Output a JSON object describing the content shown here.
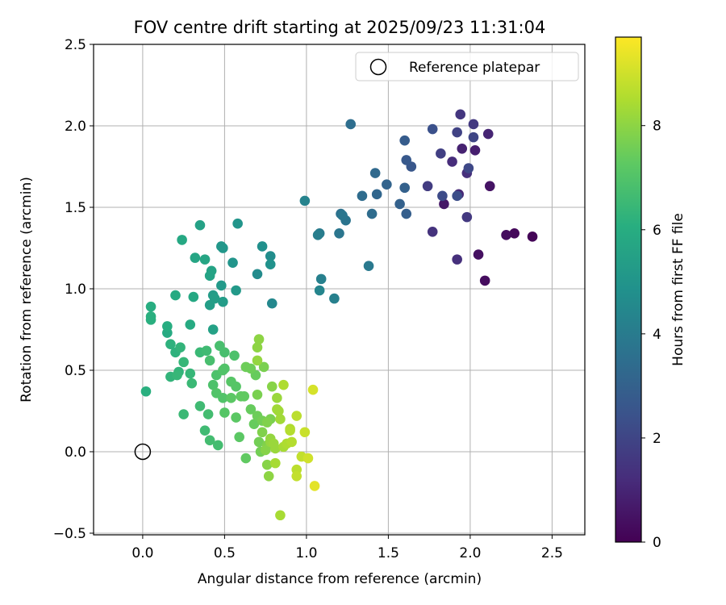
{
  "chart_data": {
    "type": "scatter",
    "title": "FOV centre drift starting at 2025/09/23 11:31:04",
    "xlabel": "Angular distance from reference (arcmin)",
    "ylabel": "Rotation from reference (arcmin)",
    "xlim": [
      -0.3,
      2.7
    ],
    "ylim": [
      -0.51,
      2.5
    ],
    "xticks": [
      0.0,
      0.5,
      1.0,
      1.5,
      2.0,
      2.5
    ],
    "xtick_labels": [
      "0.0",
      "0.5",
      "1.0",
      "1.5",
      "2.0",
      "2.5"
    ],
    "yticks": [
      -0.5,
      0.0,
      0.5,
      1.0,
      1.5,
      2.0,
      2.5
    ],
    "ytick_labels": [
      "−0.5",
      "0.0",
      "0.5",
      "1.0",
      "1.5",
      "2.0",
      "2.5"
    ],
    "grid": true,
    "legend": {
      "position": "top-right",
      "label": "Reference platepar"
    },
    "reference_point": {
      "x": 0.0,
      "y": 0.0
    },
    "colorbar": {
      "label": "Hours from first FF file",
      "colormap": "viridis",
      "range": [
        0,
        9.7
      ],
      "ticks": [
        0,
        2,
        4,
        6,
        8
      ],
      "tick_labels": [
        "0",
        "2",
        "4",
        "6",
        "8"
      ]
    },
    "series": [
      {
        "name": "FOV centre",
        "points": [
          {
            "x": 2.38,
            "y": 1.32,
            "h": 0.1
          },
          {
            "x": 2.27,
            "y": 1.34,
            "h": 0.2
          },
          {
            "x": 2.22,
            "y": 1.33,
            "h": 0.3
          },
          {
            "x": 2.09,
            "y": 1.05,
            "h": 0.3
          },
          {
            "x": 2.05,
            "y": 1.21,
            "h": 0.4
          },
          {
            "x": 2.12,
            "y": 1.63,
            "h": 0.5
          },
          {
            "x": 1.84,
            "y": 1.52,
            "h": 0.6
          },
          {
            "x": 2.03,
            "y": 1.85,
            "h": 0.8
          },
          {
            "x": 1.95,
            "y": 1.86,
            "h": 0.9
          },
          {
            "x": 2.11,
            "y": 1.95,
            "h": 1.0
          },
          {
            "x": 1.93,
            "y": 1.58,
            "h": 1.1
          },
          {
            "x": 1.89,
            "y": 1.78,
            "h": 1.2
          },
          {
            "x": 1.98,
            "y": 1.71,
            "h": 1.3
          },
          {
            "x": 1.92,
            "y": 1.18,
            "h": 1.3
          },
          {
            "x": 1.77,
            "y": 1.35,
            "h": 1.4
          },
          {
            "x": 1.94,
            "y": 2.07,
            "h": 1.5
          },
          {
            "x": 2.02,
            "y": 2.01,
            "h": 1.6
          },
          {
            "x": 1.98,
            "y": 1.44,
            "h": 1.6
          },
          {
            "x": 1.74,
            "y": 1.63,
            "h": 1.7
          },
          {
            "x": 1.82,
            "y": 1.83,
            "h": 1.8
          },
          {
            "x": 1.92,
            "y": 1.96,
            "h": 1.9
          },
          {
            "x": 2.02,
            "y": 1.93,
            "h": 2.0
          },
          {
            "x": 1.99,
            "y": 1.74,
            "h": 2.1
          },
          {
            "x": 1.83,
            "y": 1.57,
            "h": 2.2
          },
          {
            "x": 1.92,
            "y": 1.57,
            "h": 2.3
          },
          {
            "x": 1.77,
            "y": 1.98,
            "h": 2.4
          },
          {
            "x": 1.64,
            "y": 1.75,
            "h": 2.6
          },
          {
            "x": 1.61,
            "y": 1.79,
            "h": 2.7
          },
          {
            "x": 1.6,
            "y": 1.91,
            "h": 2.8
          },
          {
            "x": 1.61,
            "y": 1.46,
            "h": 2.9
          },
          {
            "x": 1.57,
            "y": 1.52,
            "h": 3.0
          },
          {
            "x": 1.6,
            "y": 1.62,
            "h": 3.0
          },
          {
            "x": 1.49,
            "y": 1.64,
            "h": 3.1
          },
          {
            "x": 1.43,
            "y": 1.58,
            "h": 3.2
          },
          {
            "x": 1.42,
            "y": 1.71,
            "h": 3.3
          },
          {
            "x": 1.34,
            "y": 1.57,
            "h": 3.4
          },
          {
            "x": 1.4,
            "y": 1.46,
            "h": 3.4
          },
          {
            "x": 1.27,
            "y": 2.01,
            "h": 3.5
          },
          {
            "x": 1.21,
            "y": 1.46,
            "h": 3.6
          },
          {
            "x": 1.24,
            "y": 1.42,
            "h": 3.7
          },
          {
            "x": 1.22,
            "y": 1.45,
            "h": 3.8
          },
          {
            "x": 1.2,
            "y": 1.34,
            "h": 3.8
          },
          {
            "x": 1.38,
            "y": 1.14,
            "h": 3.9
          },
          {
            "x": 1.08,
            "y": 1.34,
            "h": 4.0
          },
          {
            "x": 1.07,
            "y": 1.33,
            "h": 4.1
          },
          {
            "x": 1.09,
            "y": 1.06,
            "h": 4.2
          },
          {
            "x": 1.17,
            "y": 0.94,
            "h": 4.2
          },
          {
            "x": 0.99,
            "y": 1.54,
            "h": 4.3
          },
          {
            "x": 1.08,
            "y": 0.99,
            "h": 4.4
          },
          {
            "x": 0.79,
            "y": 0.91,
            "h": 4.5
          },
          {
            "x": 0.7,
            "y": 1.09,
            "h": 4.6
          },
          {
            "x": 0.78,
            "y": 1.2,
            "h": 4.7
          },
          {
            "x": 0.73,
            "y": 1.26,
            "h": 4.8
          },
          {
            "x": 0.78,
            "y": 1.15,
            "h": 4.9
          },
          {
            "x": 0.58,
            "y": 1.4,
            "h": 5.0
          },
          {
            "x": 0.55,
            "y": 1.16,
            "h": 5.0
          },
          {
            "x": 0.49,
            "y": 1.25,
            "h": 5.1
          },
          {
            "x": 0.48,
            "y": 1.26,
            "h": 5.1
          },
          {
            "x": 0.57,
            "y": 0.99,
            "h": 5.2
          },
          {
            "x": 0.48,
            "y": 1.02,
            "h": 5.2
          },
          {
            "x": 0.49,
            "y": 0.92,
            "h": 5.3
          },
          {
            "x": 0.43,
            "y": 0.96,
            "h": 5.3
          },
          {
            "x": 0.44,
            "y": 0.94,
            "h": 5.4
          },
          {
            "x": 0.41,
            "y": 0.9,
            "h": 5.4
          },
          {
            "x": 0.43,
            "y": 0.75,
            "h": 5.5
          },
          {
            "x": 0.35,
            "y": 1.39,
            "h": 5.5
          },
          {
            "x": 0.42,
            "y": 1.11,
            "h": 5.6
          },
          {
            "x": 0.41,
            "y": 1.08,
            "h": 5.6
          },
          {
            "x": 0.38,
            "y": 1.18,
            "h": 5.7
          },
          {
            "x": 0.32,
            "y": 1.19,
            "h": 5.7
          },
          {
            "x": 0.31,
            "y": 0.95,
            "h": 5.8
          },
          {
            "x": 0.24,
            "y": 1.3,
            "h": 5.8
          },
          {
            "x": 0.2,
            "y": 0.96,
            "h": 5.9
          },
          {
            "x": 0.29,
            "y": 0.78,
            "h": 5.9
          },
          {
            "x": 0.15,
            "y": 0.73,
            "h": 5.9
          },
          {
            "x": 0.15,
            "y": 0.77,
            "h": 6.0
          },
          {
            "x": 0.05,
            "y": 0.89,
            "h": 6.0
          },
          {
            "x": 0.05,
            "y": 0.83,
            "h": 6.1
          },
          {
            "x": 0.05,
            "y": 0.81,
            "h": 6.1
          },
          {
            "x": 0.02,
            "y": 0.37,
            "h": 6.1
          },
          {
            "x": 0.17,
            "y": 0.66,
            "h": 6.2
          },
          {
            "x": 0.2,
            "y": 0.61,
            "h": 6.2
          },
          {
            "x": 0.23,
            "y": 0.64,
            "h": 6.3
          },
          {
            "x": 0.17,
            "y": 0.46,
            "h": 6.3
          },
          {
            "x": 0.22,
            "y": 0.49,
            "h": 6.3
          },
          {
            "x": 0.25,
            "y": 0.55,
            "h": 6.4
          },
          {
            "x": 0.29,
            "y": 0.48,
            "h": 6.4
          },
          {
            "x": 0.21,
            "y": 0.47,
            "h": 6.4
          },
          {
            "x": 0.25,
            "y": 0.23,
            "h": 6.5
          },
          {
            "x": 0.3,
            "y": 0.42,
            "h": 6.5
          },
          {
            "x": 0.35,
            "y": 0.61,
            "h": 6.5
          },
          {
            "x": 0.39,
            "y": 0.62,
            "h": 6.6
          },
          {
            "x": 0.38,
            "y": 0.13,
            "h": 6.6
          },
          {
            "x": 0.35,
            "y": 0.28,
            "h": 6.6
          },
          {
            "x": 0.4,
            "y": 0.23,
            "h": 6.7
          },
          {
            "x": 0.41,
            "y": 0.07,
            "h": 6.7
          },
          {
            "x": 0.46,
            "y": 0.04,
            "h": 6.7
          },
          {
            "x": 0.41,
            "y": 0.56,
            "h": 6.8
          },
          {
            "x": 0.47,
            "y": 0.65,
            "h": 6.8
          },
          {
            "x": 0.5,
            "y": 0.61,
            "h": 6.8
          },
          {
            "x": 0.56,
            "y": 0.59,
            "h": 6.9
          },
          {
            "x": 0.45,
            "y": 0.47,
            "h": 6.9
          },
          {
            "x": 0.43,
            "y": 0.41,
            "h": 6.9
          },
          {
            "x": 0.49,
            "y": 0.5,
            "h": 7.0
          },
          {
            "x": 0.5,
            "y": 0.51,
            "h": 7.0
          },
          {
            "x": 0.45,
            "y": 0.36,
            "h": 7.0
          },
          {
            "x": 0.49,
            "y": 0.33,
            "h": 7.0
          },
          {
            "x": 0.5,
            "y": 0.24,
            "h": 7.1
          },
          {
            "x": 0.54,
            "y": 0.43,
            "h": 7.1
          },
          {
            "x": 0.57,
            "y": 0.4,
            "h": 7.1
          },
          {
            "x": 0.54,
            "y": 0.33,
            "h": 7.2
          },
          {
            "x": 0.57,
            "y": 0.21,
            "h": 7.2
          },
          {
            "x": 0.59,
            "y": 0.09,
            "h": 7.2
          },
          {
            "x": 0.6,
            "y": 0.34,
            "h": 7.3
          },
          {
            "x": 0.62,
            "y": 0.34,
            "h": 7.3
          },
          {
            "x": 0.63,
            "y": -0.04,
            "h": 7.3
          },
          {
            "x": 0.66,
            "y": 0.26,
            "h": 7.4
          },
          {
            "x": 0.68,
            "y": 0.17,
            "h": 7.4
          },
          {
            "x": 0.69,
            "y": 0.47,
            "h": 7.4
          },
          {
            "x": 0.63,
            "y": 0.52,
            "h": 7.5
          },
          {
            "x": 0.66,
            "y": 0.51,
            "h": 7.5
          },
          {
            "x": 0.7,
            "y": 0.22,
            "h": 7.5
          },
          {
            "x": 0.72,
            "y": 0.0,
            "h": 7.6
          },
          {
            "x": 0.71,
            "y": 0.06,
            "h": 7.6
          },
          {
            "x": 0.73,
            "y": 0.19,
            "h": 7.6
          },
          {
            "x": 0.74,
            "y": 0.52,
            "h": 7.7
          },
          {
            "x": 0.7,
            "y": 0.35,
            "h": 7.7
          },
          {
            "x": 0.78,
            "y": 0.2,
            "h": 7.7
          },
          {
            "x": 0.76,
            "y": 0.18,
            "h": 7.8
          },
          {
            "x": 0.73,
            "y": 0.12,
            "h": 7.8
          },
          {
            "x": 0.76,
            "y": 0.04,
            "h": 7.8
          },
          {
            "x": 0.79,
            "y": 0.4,
            "h": 7.9
          },
          {
            "x": 0.75,
            "y": 0.01,
            "h": 7.9
          },
          {
            "x": 0.76,
            "y": -0.08,
            "h": 7.9
          },
          {
            "x": 0.77,
            "y": -0.15,
            "h": 8.0
          },
          {
            "x": 0.71,
            "y": 0.69,
            "h": 8.0
          },
          {
            "x": 0.7,
            "y": 0.64,
            "h": 8.0
          },
          {
            "x": 0.7,
            "y": 0.56,
            "h": 8.1
          },
          {
            "x": 0.78,
            "y": 0.08,
            "h": 8.1
          },
          {
            "x": 0.78,
            "y": 0.06,
            "h": 8.1
          },
          {
            "x": 0.8,
            "y": 0.05,
            "h": 8.2
          },
          {
            "x": 0.81,
            "y": 0.02,
            "h": 8.2
          },
          {
            "x": 0.82,
            "y": 0.33,
            "h": 8.2
          },
          {
            "x": 0.82,
            "y": 0.26,
            "h": 8.3
          },
          {
            "x": 0.84,
            "y": 0.2,
            "h": 8.3
          },
          {
            "x": 0.83,
            "y": 0.25,
            "h": 8.3
          },
          {
            "x": 0.81,
            "y": -0.07,
            "h": 8.4
          },
          {
            "x": 0.84,
            "y": -0.39,
            "h": 8.4
          },
          {
            "x": 0.86,
            "y": 0.03,
            "h": 8.4
          },
          {
            "x": 0.88,
            "y": 0.05,
            "h": 8.5
          },
          {
            "x": 0.86,
            "y": 0.41,
            "h": 8.5
          },
          {
            "x": 0.9,
            "y": 0.14,
            "h": 8.5
          },
          {
            "x": 0.9,
            "y": 0.13,
            "h": 8.6
          },
          {
            "x": 0.91,
            "y": 0.06,
            "h": 8.6
          },
          {
            "x": 0.94,
            "y": 0.22,
            "h": 8.7
          },
          {
            "x": 0.94,
            "y": -0.11,
            "h": 8.7
          },
          {
            "x": 0.94,
            "y": -0.15,
            "h": 8.8
          },
          {
            "x": 0.97,
            "y": -0.03,
            "h": 8.8
          },
          {
            "x": 0.99,
            "y": 0.12,
            "h": 8.9
          },
          {
            "x": 1.01,
            "y": -0.04,
            "h": 9.0
          },
          {
            "x": 1.04,
            "y": 0.38,
            "h": 9.1
          },
          {
            "x": 1.05,
            "y": -0.21,
            "h": 9.3
          }
        ]
      }
    ]
  }
}
